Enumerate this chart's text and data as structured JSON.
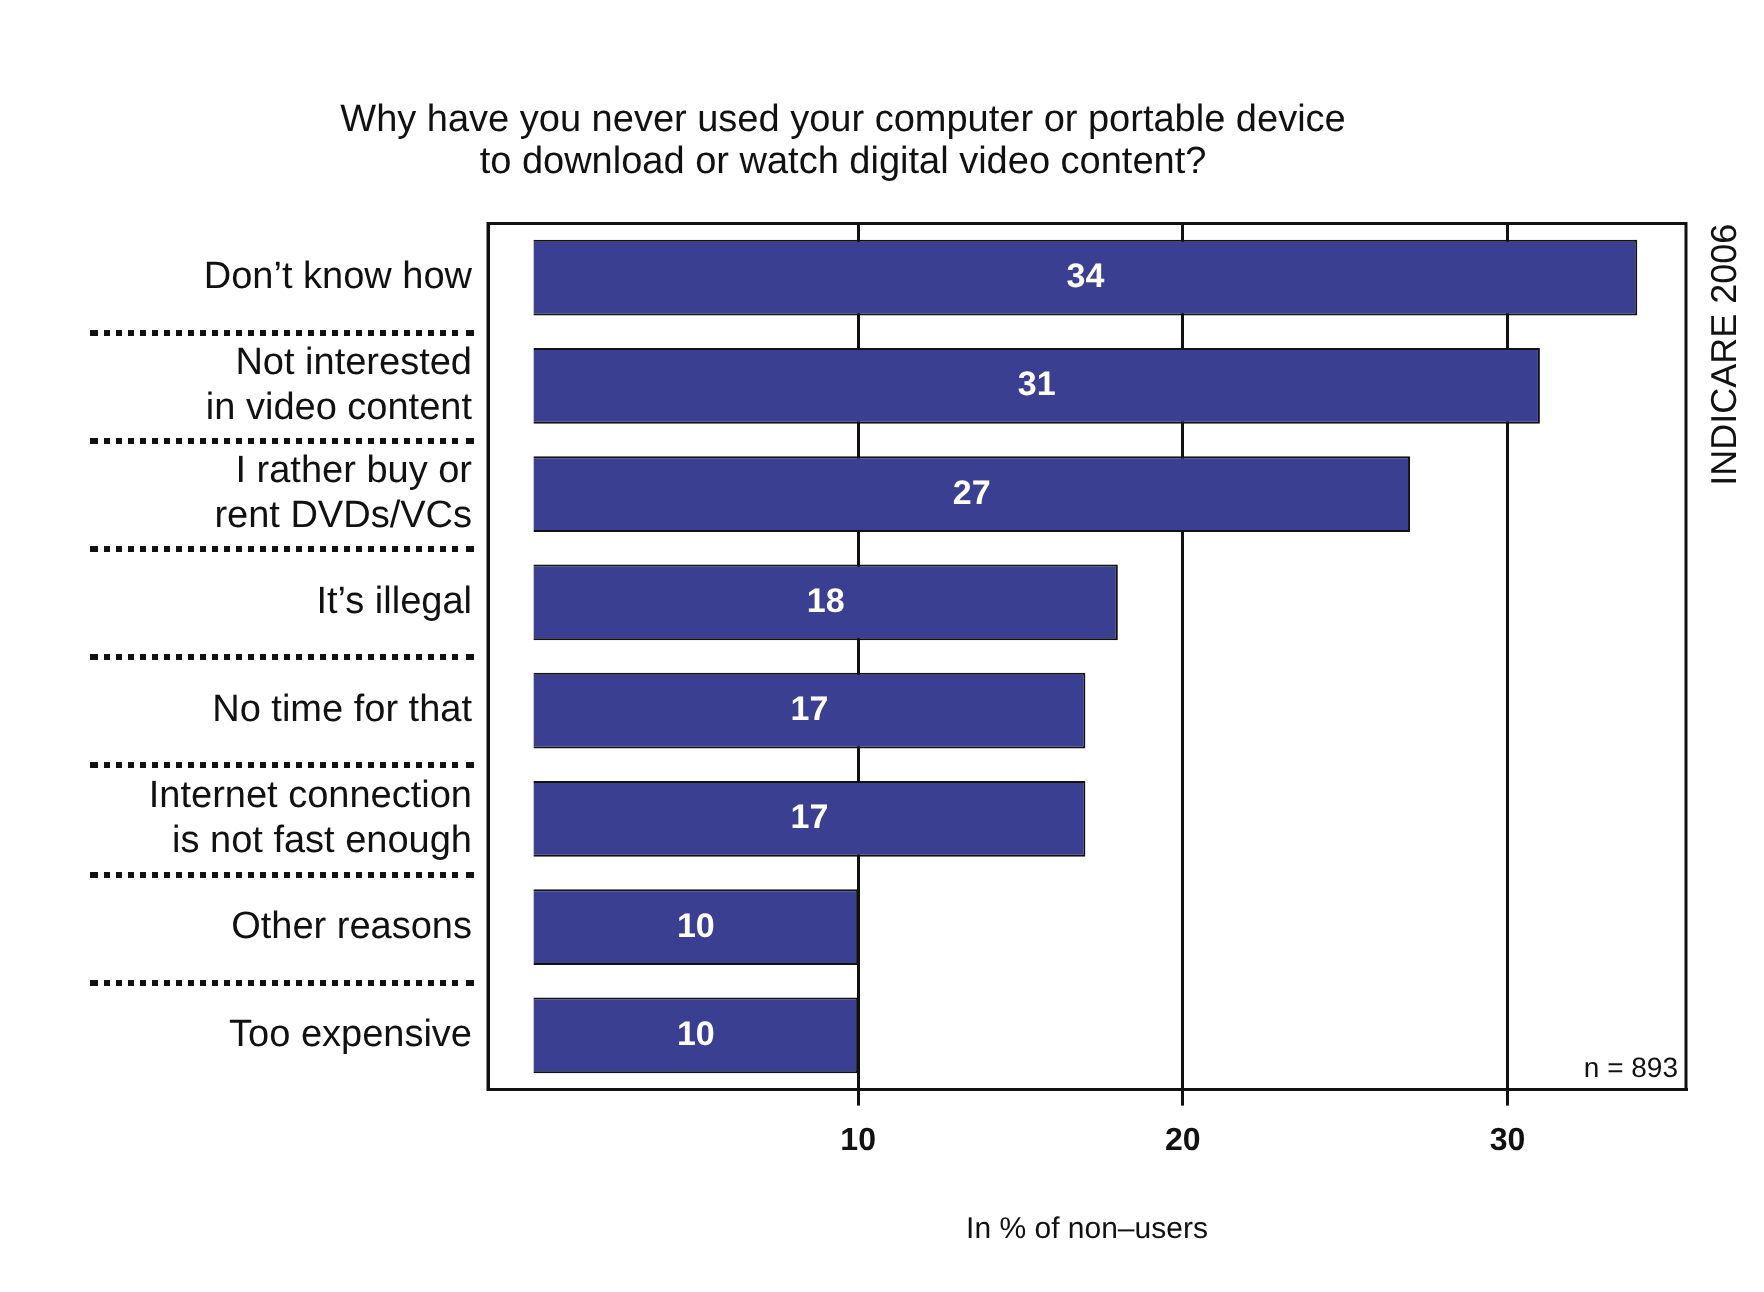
{
  "chart_data": {
    "type": "bar",
    "orientation": "horizontal",
    "title": "Why have you never used your computer or portable device\nto download or watch digital video content?",
    "xlabel": "In % of non–users",
    "categories": [
      "Don’t know how",
      "Not interested\nin video content",
      "I rather buy or\nrent DVDs/VCs",
      "It’s illegal",
      "No time for that",
      "Internet connection\nis not fast enough",
      "Other reasons",
      "Too expensive"
    ],
    "values": [
      34,
      31,
      27,
      18,
      17,
      17,
      10,
      10
    ],
    "color": "#3b3f91",
    "xlim": [
      -1.4,
      35.5
    ],
    "xticks": [
      10,
      20,
      30
    ],
    "grid": "x",
    "legend": false,
    "data_labels": true,
    "annotations": [
      "n = 893",
      "INDICARE 2006"
    ]
  }
}
